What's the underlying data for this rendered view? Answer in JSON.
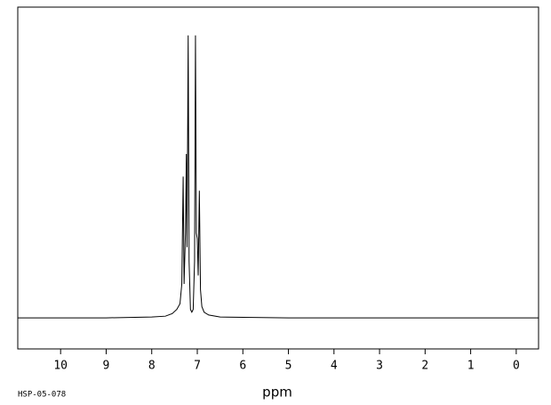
{
  "chart_data": {
    "type": "line",
    "x_label": "ppm",
    "footnote": "HSP-05-078",
    "xlim": [
      10.94,
      -0.49
    ],
    "ylim": [
      -11,
      110
    ],
    "xticks": [
      10,
      9,
      8,
      7,
      6,
      5,
      4,
      3,
      2,
      1,
      0
    ],
    "x": [
      10.94,
      9,
      8,
      7.7,
      7.55,
      7.45,
      7.38,
      7.34,
      7.31,
      7.29,
      7.26,
      7.24,
      7.225,
      7.2,
      7.18,
      7.15,
      7.12,
      7.09,
      7.06,
      7.04,
      7.02,
      7.0,
      6.98,
      6.955,
      6.93,
      6.9,
      6.85,
      6.75,
      6.5,
      5,
      3,
      1,
      -0.49
    ],
    "series": [
      {
        "color": "#000000",
        "values": [
          0,
          0,
          0.3,
          0.6,
          1.5,
          3,
          5,
          12,
          50,
          12,
          30,
          58,
          25,
          100,
          20,
          3,
          2,
          3,
          20,
          100,
          30,
          28,
          15,
          45,
          10,
          4,
          2,
          1,
          0.3,
          0,
          0,
          0,
          0
        ]
      }
    ]
  }
}
